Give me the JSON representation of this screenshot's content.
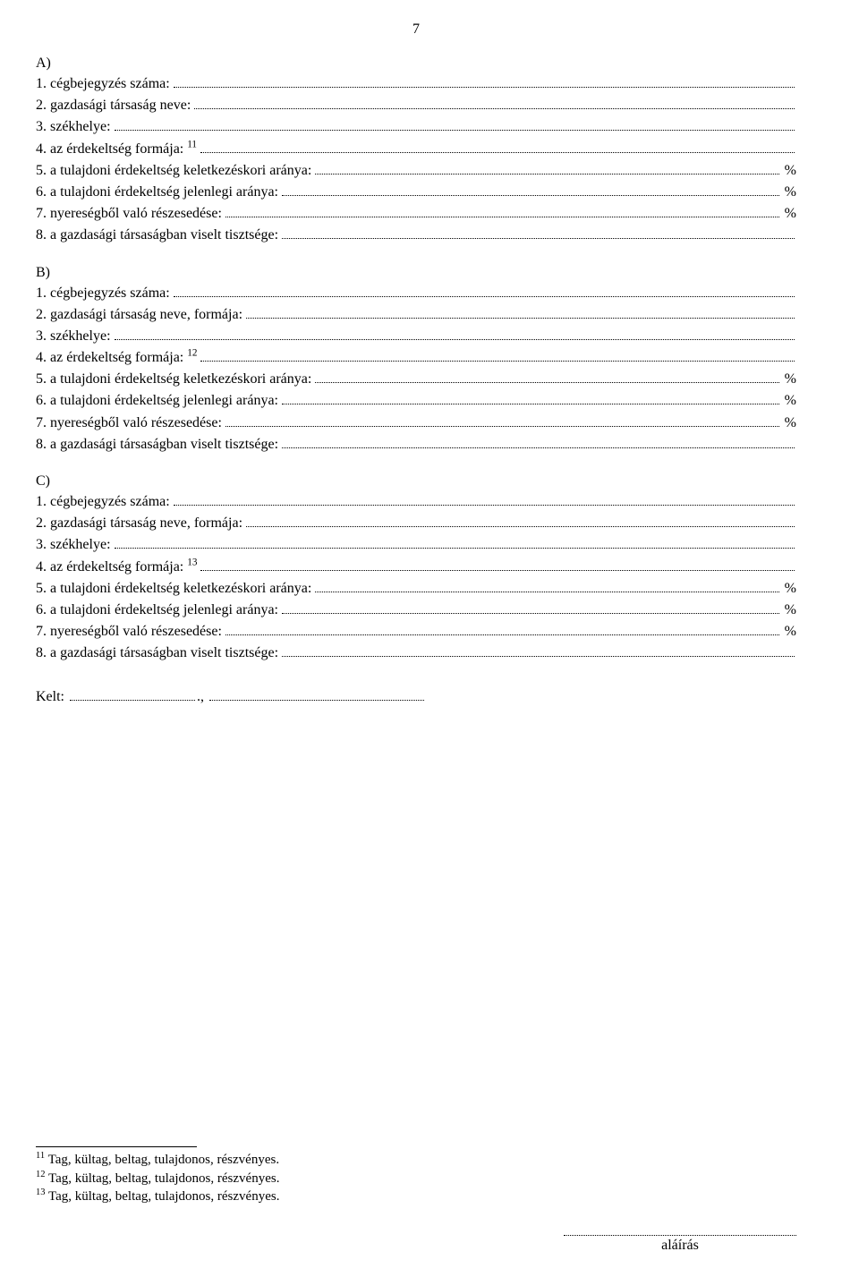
{
  "page_number": "7",
  "sections": [
    {
      "letter": "A)",
      "items": [
        {
          "text": "1. cégbejegyzés száma:",
          "sup": "",
          "suffix": ""
        },
        {
          "text": "2. gazdasági társaság neve:",
          "sup": "",
          "suffix": ""
        },
        {
          "text": "3. székhelye:",
          "sup": "",
          "suffix": ""
        },
        {
          "text": "4. az érdekeltség formája:",
          "sup": "11",
          "suffix": ""
        },
        {
          "text": "5. a tulajdoni érdekeltség keletkezéskori aránya:",
          "sup": "",
          "suffix": "%"
        },
        {
          "text": "6. a tulajdoni érdekeltség jelenlegi aránya:",
          "sup": "",
          "suffix": "%"
        },
        {
          "text": "7. nyereségből való részesedése:",
          "sup": "",
          "suffix": "%"
        },
        {
          "text": "8. a gazdasági társaságban viselt tisztsége:",
          "sup": "",
          "suffix": ""
        }
      ]
    },
    {
      "letter": "B)",
      "items": [
        {
          "text": "1. cégbejegyzés száma:",
          "sup": "",
          "suffix": ""
        },
        {
          "text": "2. gazdasági társaság neve, formája:",
          "sup": "",
          "suffix": ""
        },
        {
          "text": "3. székhelye:",
          "sup": "",
          "suffix": ""
        },
        {
          "text": "4. az érdekeltség formája:",
          "sup": "12",
          "suffix": ""
        },
        {
          "text": "5. a tulajdoni érdekeltség keletkezéskori aránya:",
          "sup": "",
          "suffix": "%"
        },
        {
          "text": "6. a tulajdoni érdekeltség jelenlegi aránya:",
          "sup": "",
          "suffix": "%"
        },
        {
          "text": "7. nyereségből való részesedése:",
          "sup": "",
          "suffix": "%"
        },
        {
          "text": "8. a gazdasági társaságban viselt tisztsége:",
          "sup": "",
          "suffix": ""
        }
      ]
    },
    {
      "letter": "C)",
      "items": [
        {
          "text": "1. cégbejegyzés száma:",
          "sup": "",
          "suffix": ""
        },
        {
          "text": "2. gazdasági társaság neve, formája:",
          "sup": "",
          "suffix": ""
        },
        {
          "text": "3. székhelye:",
          "sup": "",
          "suffix": ""
        },
        {
          "text": "4. az érdekeltség formája:",
          "sup": "13",
          "suffix": ""
        },
        {
          "text": "5. a tulajdoni érdekeltség keletkezéskori aránya:",
          "sup": "",
          "suffix": "%"
        },
        {
          "text": "6. a tulajdoni érdekeltség jelenlegi aránya:",
          "sup": "",
          "suffix": "%"
        },
        {
          "text": "7. nyereségből való részesedése:",
          "sup": "",
          "suffix": "%"
        },
        {
          "text": "8. a gazdasági társaságban viselt tisztsége:",
          "sup": "",
          "suffix": ""
        }
      ]
    }
  ],
  "kelt_label": "Kelt:",
  "kelt_sep": ".,",
  "footnotes": [
    {
      "num": "11",
      "text": " Tag, kültag, beltag, tulajdonos, részvényes."
    },
    {
      "num": "12",
      "text": " Tag, kültag, beltag, tulajdonos, részvényes."
    },
    {
      "num": "13",
      "text": " Tag, kültag, beltag, tulajdonos, részvényes."
    }
  ],
  "signature_label": "aláírás"
}
